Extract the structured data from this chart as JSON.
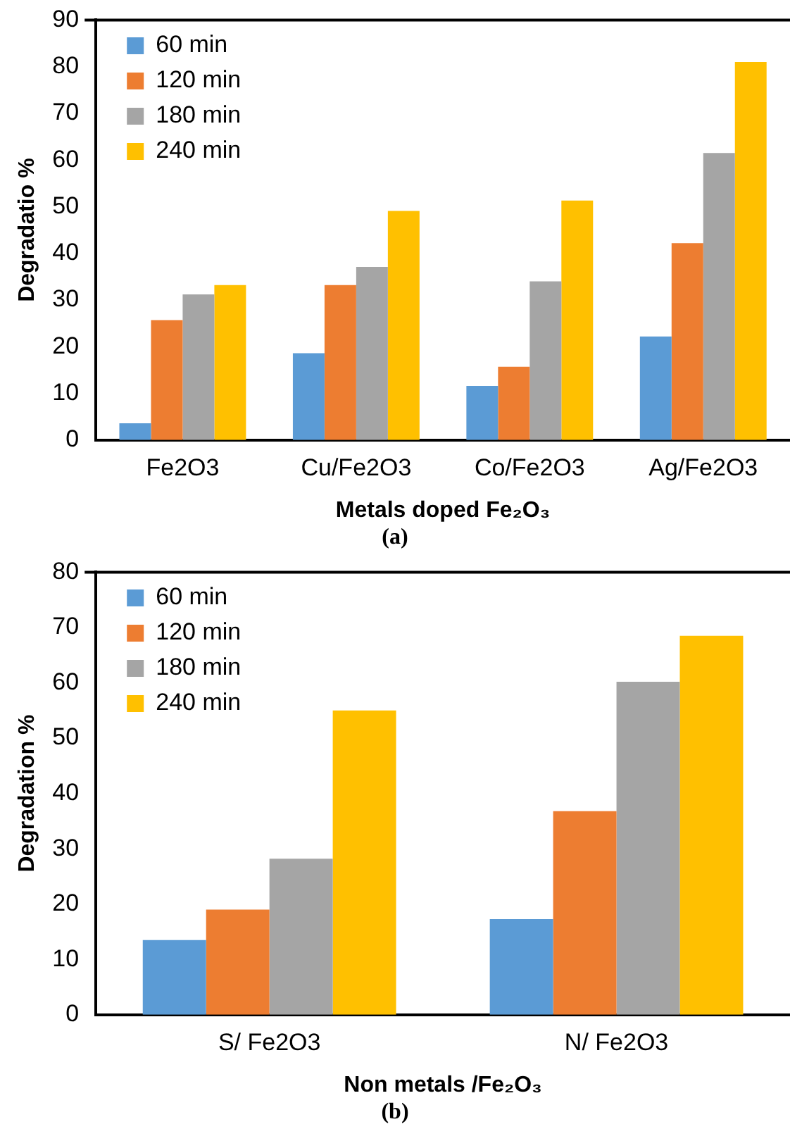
{
  "chart_data": [
    {
      "type": "bar",
      "categories": [
        "Fe2O3",
        "Cu/Fe2O3",
        "Co/Fe2O3",
        "Ag/Fe2O3"
      ],
      "xlabel": "Metals doped Fe₂O₃",
      "ylabel": "Degradatio %",
      "ylim": [
        0,
        90
      ],
      "yticks": [
        0,
        10,
        20,
        30,
        40,
        50,
        60,
        70,
        80,
        90
      ],
      "grid": false,
      "legend": "top left",
      "annotations": [
        "(a)"
      ],
      "series": [
        {
          "name": "60 min",
          "color": "#5b9bd5",
          "values": [
            3.6,
            18.6,
            11.6,
            22.2
          ]
        },
        {
          "name": "120 min",
          "color": "#ed7d31",
          "values": [
            25.7,
            33.2,
            15.7,
            42.2
          ]
        },
        {
          "name": "180 min",
          "color": "#a5a5a5",
          "values": [
            31.2,
            37.1,
            34.0,
            61.5
          ]
        },
        {
          "name": "240 min",
          "color": "#ffc000",
          "values": [
            33.2,
            49.1,
            51.3,
            81.0
          ]
        }
      ]
    },
    {
      "type": "bar",
      "categories": [
        "S/ Fe2O3",
        "N/ Fe2O3"
      ],
      "xlabel": "Non metals /Fe₂O₃",
      "ylabel": "Degradation %",
      "ylim": [
        0,
        80
      ],
      "yticks": [
        0,
        10,
        20,
        30,
        40,
        50,
        60,
        70,
        80
      ],
      "grid": false,
      "legend": "top left",
      "annotations": [
        "(b)"
      ],
      "series": [
        {
          "name": "60 min",
          "color": "#5b9bd5",
          "values": [
            13.5,
            17.3
          ]
        },
        {
          "name": "120 min",
          "color": "#ed7d31",
          "values": [
            19.0,
            36.8
          ]
        },
        {
          "name": "180 min",
          "color": "#a5a5a5",
          "values": [
            28.2,
            60.2
          ]
        },
        {
          "name": "240 min",
          "color": "#ffc000",
          "values": [
            55.0,
            68.5
          ]
        }
      ]
    }
  ]
}
